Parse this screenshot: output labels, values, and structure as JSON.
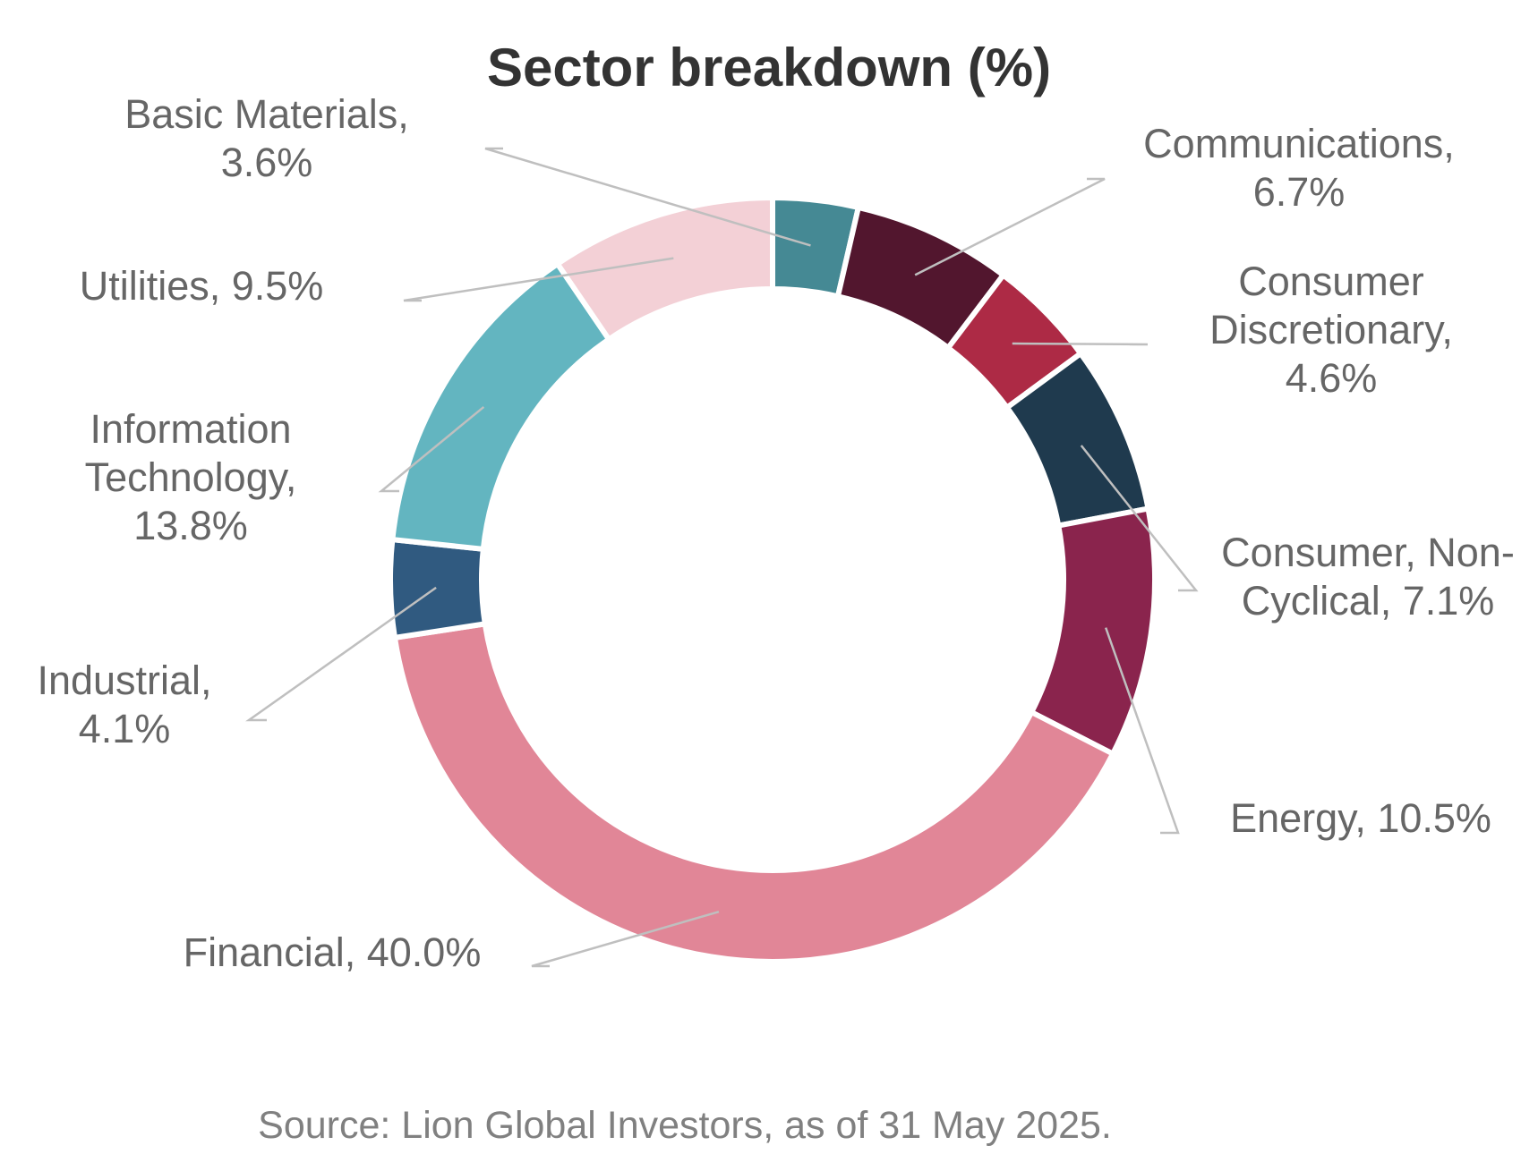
{
  "chart_data": {
    "type": "pie",
    "style": "donut",
    "title": "Sector breakdown (%)",
    "source": "Source: Lion Global Investors, as of 31 May 2025.",
    "slices": [
      {
        "name": "Basic Materials",
        "value": 3.6,
        "color": "#458994",
        "label_lines": [
          "Basic Materials,",
          "3.6%"
        ]
      },
      {
        "name": "Communications",
        "value": 6.7,
        "color": "#52162e",
        "label_lines": [
          "Communications,",
          "6.7%"
        ]
      },
      {
        "name": "Consumer Discretionary",
        "value": 4.6,
        "color": "#ad2a45",
        "label_lines": [
          "Consumer",
          "Discretionary,",
          "4.6%"
        ]
      },
      {
        "name": "Consumer, Non-Cyclical",
        "value": 7.1,
        "color": "#1f3a4e",
        "label_lines": [
          "Consumer, Non-",
          "Cyclical, 7.1%"
        ]
      },
      {
        "name": "Energy",
        "value": 10.5,
        "color": "#8a244d",
        "label_lines": [
          "Energy, 10.5%"
        ]
      },
      {
        "name": "Financial",
        "value": 40.0,
        "color": "#e18697",
        "label_lines": [
          "Financial, 40.0%"
        ]
      },
      {
        "name": "Industrial",
        "value": 4.1,
        "color": "#305a80",
        "label_lines": [
          "Industrial,",
          "4.1%"
        ]
      },
      {
        "name": "Information Technology",
        "value": 13.8,
        "color": "#63b5c0",
        "label_lines": [
          "Information",
          "Technology,",
          "13.8%"
        ]
      },
      {
        "name": "Utilities",
        "value": 9.5,
        "color": "#f3d0d6",
        "label_lines": [
          "Utilities, 9.5%"
        ]
      }
    ]
  }
}
